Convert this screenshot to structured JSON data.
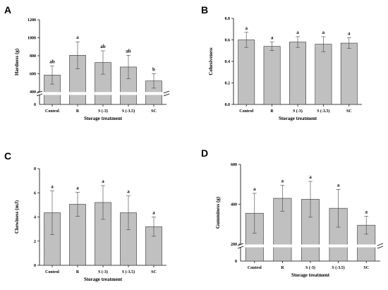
{
  "chart_data": [
    {
      "type": "bar",
      "panel": "A",
      "categories": [
        "Control",
        "R",
        "S (-3)",
        "S (-3.5)",
        "SC"
      ],
      "values": [
        585,
        805,
        725,
        675,
        520
      ],
      "errors": [
        100,
        150,
        130,
        130,
        80
      ],
      "letters": [
        "ab",
        "a",
        "ab",
        "ab",
        "b"
      ],
      "ylabel": "Hardness (g)",
      "xlabel": "Storage treatment",
      "yticks": [
        "400",
        "600",
        "800",
        "1000",
        "1200"
      ],
      "axis_break": true,
      "ylim": [
        400,
        1200
      ],
      "below_break_label": "0",
      "bar_color": "#c0c0c0"
    },
    {
      "type": "bar",
      "panel": "B",
      "categories": [
        "Control",
        "R",
        "S (-3)",
        "S (-3.5)",
        "SC"
      ],
      "values": [
        0.6,
        0.54,
        0.58,
        0.56,
        0.57
      ],
      "errors": [
        0.07,
        0.04,
        0.05,
        0.07,
        0.05
      ],
      "letters": [
        "a",
        "a",
        "a",
        "a",
        "a"
      ],
      "ylabel": "Cohesiveness",
      "xlabel": "Storage treatment",
      "yticks": [
        "0.0",
        "0.2",
        "0.4",
        "0.6",
        "0.8"
      ],
      "axis_break": false,
      "ylim": [
        0,
        0.8
      ],
      "bar_color": "#c0c0c0"
    },
    {
      "type": "bar",
      "panel": "C",
      "categories": [
        "Control",
        "R",
        "S (-3)",
        "S (-3.5)",
        "SC"
      ],
      "values": [
        4.35,
        5.05,
        5.2,
        4.35,
        3.2
      ],
      "errors": [
        1.8,
        1.0,
        1.4,
        1.4,
        0.8
      ],
      "letters": [
        "a",
        "a",
        "a",
        "a",
        "a"
      ],
      "ylabel": "Chewiness (mJ)",
      "xlabel": "Storage treatment",
      "yticks": [
        "0",
        "2",
        "4",
        "6",
        "8"
      ],
      "axis_break": false,
      "ylim": [
        0,
        8
      ],
      "bar_color": "#c0c0c0"
    },
    {
      "type": "bar",
      "panel": "D",
      "categories": [
        "Control",
        "R",
        "S (-3)",
        "S (-3.5)",
        "SC"
      ],
      "values": [
        355,
        430,
        425,
        380,
        295
      ],
      "errors": [
        100,
        65,
        90,
        95,
        45
      ],
      "letters": [
        "a",
        "a",
        "a",
        "a",
        "a"
      ],
      "ylabel": "Gumminess (g)",
      "xlabel": "Storage treatment",
      "yticks": [
        "200",
        "400",
        "600"
      ],
      "axis_break": true,
      "ylim": [
        200,
        600
      ],
      "below_break_label": "0",
      "bar_color": "#c0c0c0"
    }
  ]
}
